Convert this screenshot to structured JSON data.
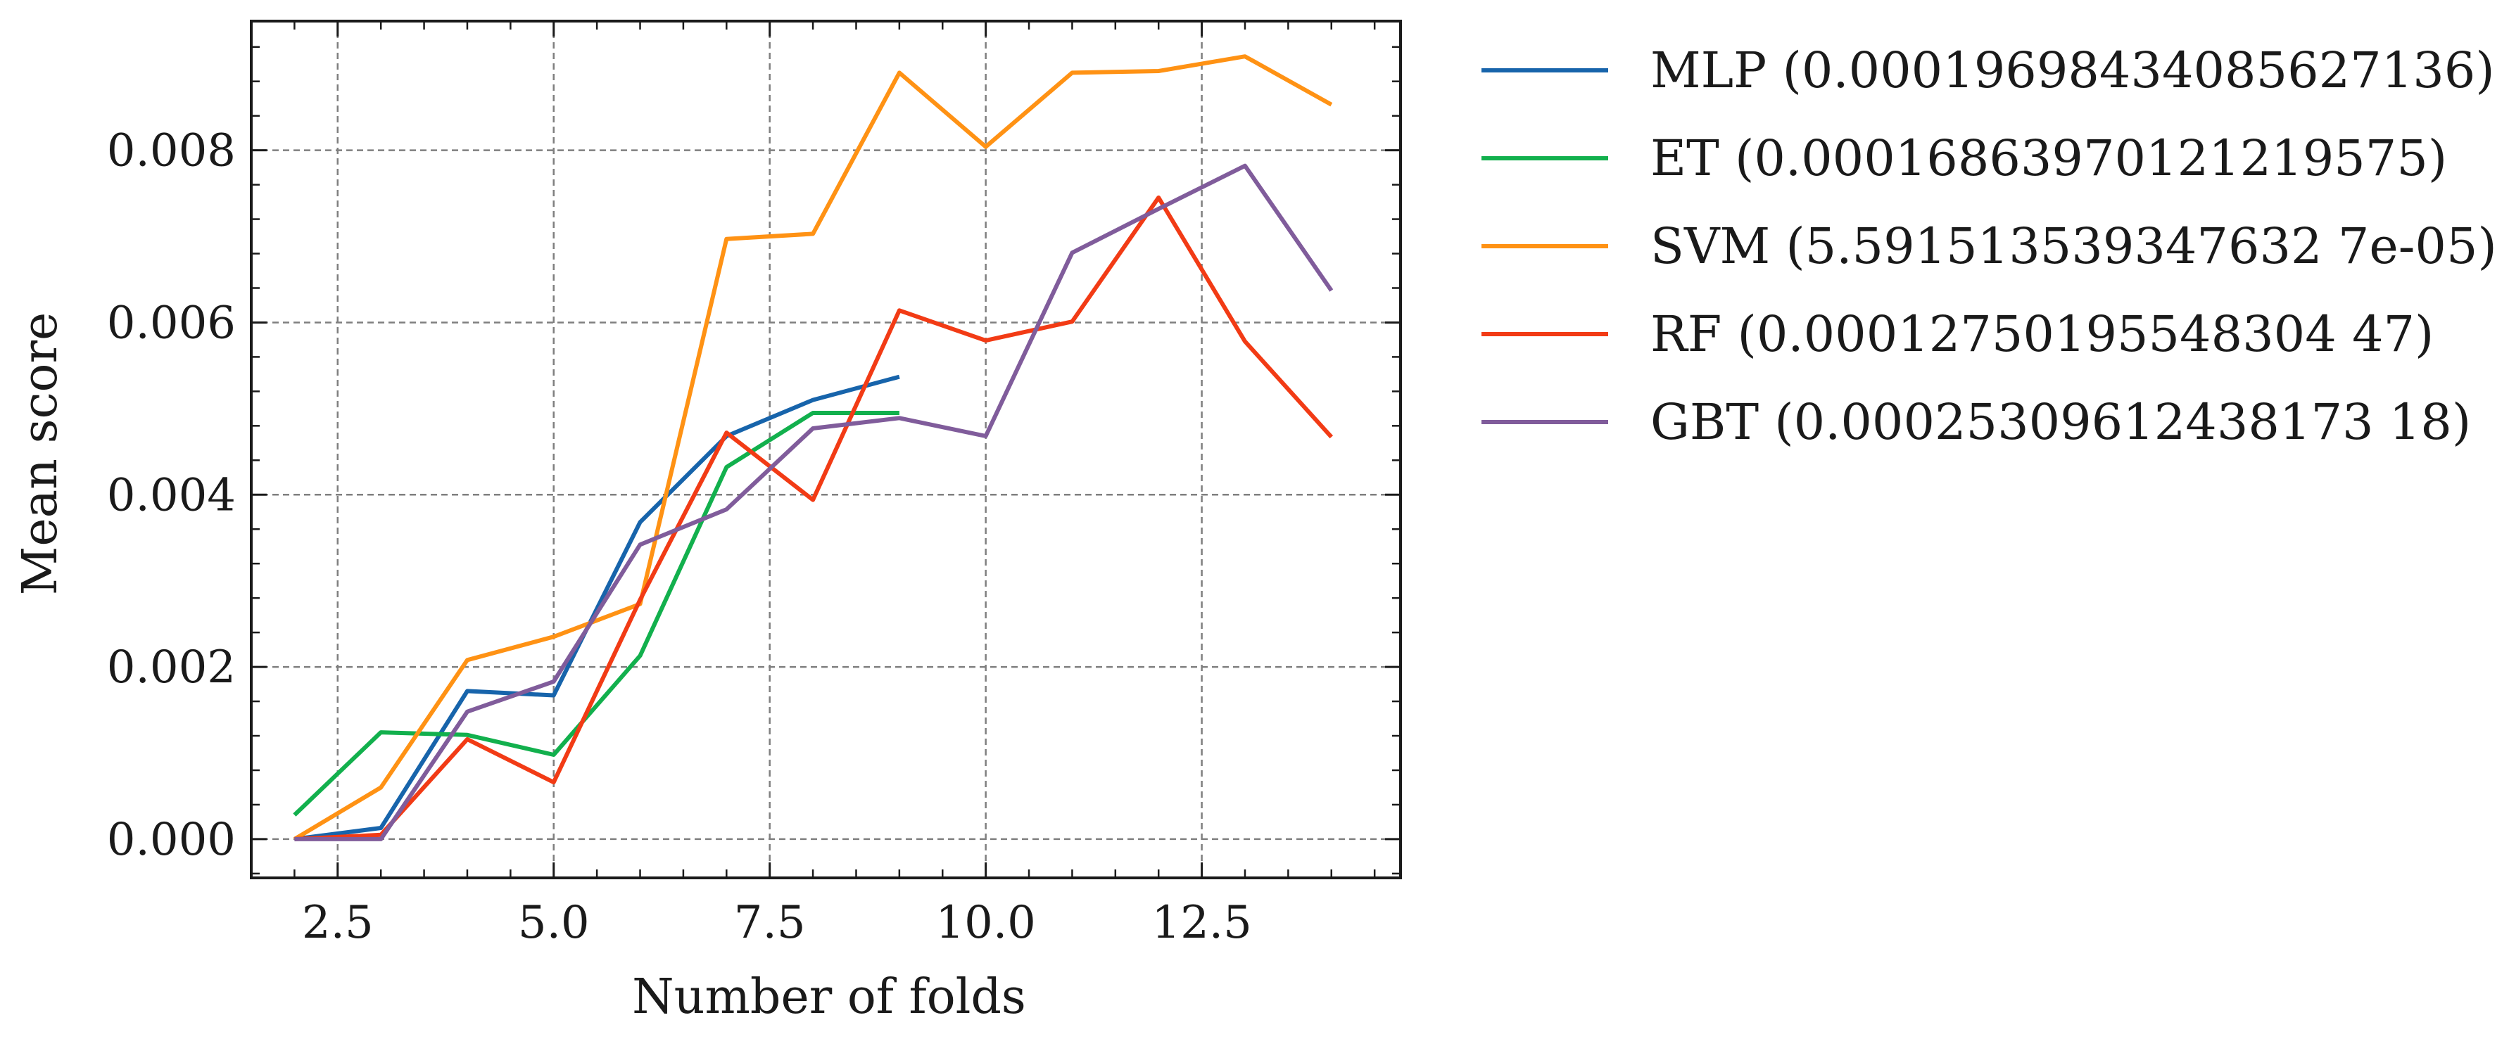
{
  "chart_data": {
    "type": "line",
    "title": "",
    "xlabel": "Number of folds",
    "ylabel": "Mean score",
    "xlim": [
      1.5,
      14.8
    ],
    "ylim": [
      -0.00045,
      0.0095
    ],
    "x_ticks": [
      2.5,
      5.0,
      7.5,
      10.0,
      12.5
    ],
    "x_tick_labels": [
      "2.5",
      "5.0",
      "7.5",
      "10.0",
      "12.5"
    ],
    "y_ticks": [
      0.0,
      0.002,
      0.004,
      0.006,
      0.008
    ],
    "y_tick_labels": [
      "0.000",
      "0.002",
      "0.004",
      "0.006",
      "0.008"
    ],
    "grid": true,
    "legend_position": "outside-right-top",
    "series": [
      {
        "name": "MLP (0.00019698434085627136)",
        "color": "#1764ab",
        "x": [
          2,
          3,
          4,
          5,
          6,
          7,
          8,
          9
        ],
        "y": [
          0.0,
          0.00013,
          0.00172,
          0.00167,
          0.00368,
          0.00468,
          0.0051,
          0.00537
        ]
      },
      {
        "name": "ET (0.00016863970121219575)",
        "color": "#12b04d",
        "x": [
          2,
          3,
          4,
          5,
          6,
          7,
          8,
          9
        ],
        "y": [
          0.00028,
          0.00124,
          0.00121,
          0.00098,
          0.00213,
          0.00432,
          0.00495,
          0.00495
        ]
      },
      {
        "name": "SVM (5.591513539347632 7e-05)",
        "color": "#ff9214",
        "x": [
          2,
          3,
          4,
          5,
          6,
          7,
          8,
          9,
          10,
          11,
          12,
          13,
          14
        ],
        "y": [
          0.0,
          0.0006,
          0.00208,
          0.00235,
          0.00273,
          0.00697,
          0.00703,
          0.0089,
          0.00804,
          0.0089,
          0.00892,
          0.00909,
          0.00853
        ]
      },
      {
        "name": "RF (0.00012750195548304 47)",
        "color": "#f23b15",
        "x": [
          2,
          3,
          4,
          5,
          6,
          7,
          8,
          9,
          10,
          11,
          12,
          13,
          14
        ],
        "y": [
          0.0,
          5e-05,
          0.00116,
          0.00066,
          0.00278,
          0.00472,
          0.00394,
          0.00614,
          0.00579,
          0.00601,
          0.00745,
          0.00578,
          0.00467
        ]
      },
      {
        "name": "GBT (0.00025309612438173 18)",
        "color": "#805c9b",
        "x": [
          2,
          3,
          4,
          5,
          6,
          7,
          8,
          9,
          10,
          11,
          12,
          13,
          14
        ],
        "y": [
          0.0,
          0.0,
          0.00148,
          0.00183,
          0.00342,
          0.00383,
          0.00477,
          0.00489,
          0.00468,
          0.00681,
          0.00732,
          0.00782,
          0.00637
        ]
      }
    ]
  }
}
